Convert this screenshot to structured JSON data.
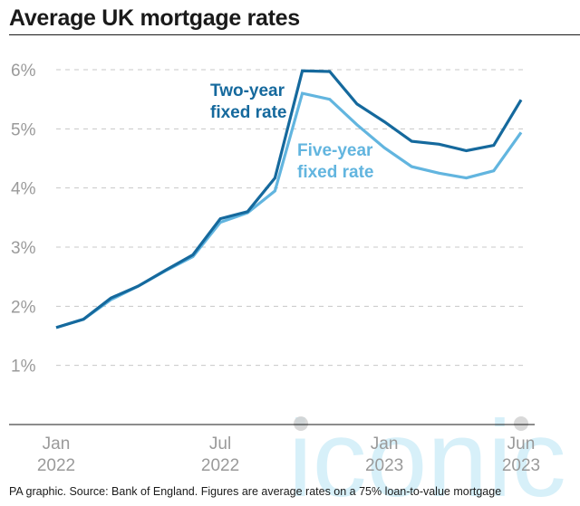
{
  "title": "Average UK mortgage rates",
  "footer": "PA graphic. Source: Bank of England. Figures are average rates on a 75% loan-to-value mortgage",
  "watermark": "iconic",
  "chart_data": {
    "type": "line",
    "title": "Average UK mortgage rates",
    "xlabel": "",
    "ylabel": "",
    "ylim": [
      0,
      6
    ],
    "x": [
      "Jan 2022",
      "Feb 2022",
      "Mar 2022",
      "Apr 2022",
      "May 2022",
      "Jun 2022",
      "Jul 2022",
      "Aug 2022",
      "Sep 2022",
      "Oct 2022",
      "Nov 2022",
      "Dec 2022",
      "Jan 2023",
      "Feb 2023",
      "Mar 2023",
      "Apr 2023",
      "May 2023",
      "Jun 2023"
    ],
    "x_ticks": [
      {
        "index": 0,
        "label1": "Jan",
        "label2": "2022"
      },
      {
        "index": 6,
        "label1": "Jul",
        "label2": "2022"
      },
      {
        "index": 12,
        "label1": "Jan",
        "label2": "2023"
      },
      {
        "index": 17,
        "label1": "Jun",
        "label2": "2023"
      }
    ],
    "y_ticks": [
      {
        "value": 1,
        "label": "1%"
      },
      {
        "value": 2,
        "label": "2%"
      },
      {
        "value": 3,
        "label": "3%"
      },
      {
        "value": 4,
        "label": "4%"
      },
      {
        "value": 5,
        "label": "5%"
      },
      {
        "value": 6,
        "label": "6%"
      }
    ],
    "grid": true,
    "series": [
      {
        "name": "Five-year fixed rate",
        "label_lines": [
          "Five-year",
          "fixed rate"
        ],
        "color": "#62b5df",
        "values": [
          1.64,
          1.78,
          2.11,
          2.34,
          2.6,
          2.84,
          3.42,
          3.58,
          3.95,
          5.6,
          5.5,
          5.07,
          4.68,
          4.36,
          4.25,
          4.17,
          4.29,
          4.94
        ]
      },
      {
        "name": "Two-year fixed rate",
        "label_lines": [
          "Two-year",
          "fixed rate"
        ],
        "color": "#15699d",
        "values": [
          1.64,
          1.78,
          2.14,
          2.34,
          2.61,
          2.87,
          3.48,
          3.6,
          4.17,
          5.98,
          5.97,
          5.42,
          5.12,
          4.79,
          4.74,
          4.63,
          4.72,
          5.49
        ]
      }
    ]
  }
}
